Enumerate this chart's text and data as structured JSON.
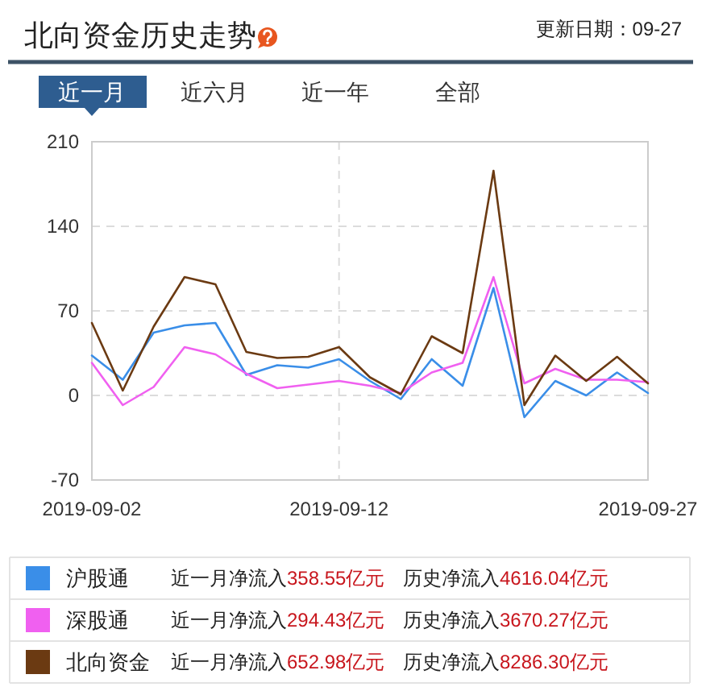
{
  "chart_data": {
    "type": "line",
    "title": "北向资金历史走势",
    "categories": [
      "2019-09-02",
      null,
      null,
      null,
      null,
      null,
      null,
      null,
      "2019-09-12",
      null,
      null,
      null,
      null,
      null,
      null,
      null,
      null,
      null,
      "2019-09-27"
    ],
    "series": [
      {
        "name": "沪股通",
        "color": "#3a8ee8",
        "values": [
          33,
          13,
          52,
          58,
          60,
          17,
          25,
          23,
          30,
          12,
          -3,
          30,
          8,
          89,
          -18,
          12,
          0,
          19,
          2
        ]
      },
      {
        "name": "深股通",
        "color": "#f060f0",
        "values": [
          27,
          -8,
          7,
          40,
          34,
          18,
          6,
          9,
          12,
          8,
          2,
          19,
          27,
          98,
          10,
          22,
          13,
          13,
          11
        ]
      },
      {
        "name": "北向资金",
        "color": "#6b3a12",
        "values": [
          60,
          4,
          57,
          98,
          92,
          36,
          31,
          32,
          40,
          15,
          1,
          49,
          35,
          186,
          -8,
          33,
          12,
          32,
          10
        ]
      }
    ],
    "ylim": [
      -70,
      210
    ],
    "yticks": [
      -70,
      0,
      70,
      140,
      210
    ],
    "grid": true,
    "legend": "bottom",
    "marker": "none",
    "line_style": "solid",
    "annotations": [
      "更新日期：09-27",
      "近一月",
      "近六月",
      "近一年",
      "全部",
      "近一月净流入358.55亿元",
      "历史净流入4616.04亿元",
      "近一月净流入294.43亿元",
      "历史净流入3670.27亿元",
      "近一月净流入652.98亿元",
      "历史净流入8286.30亿元"
    ]
  }
}
